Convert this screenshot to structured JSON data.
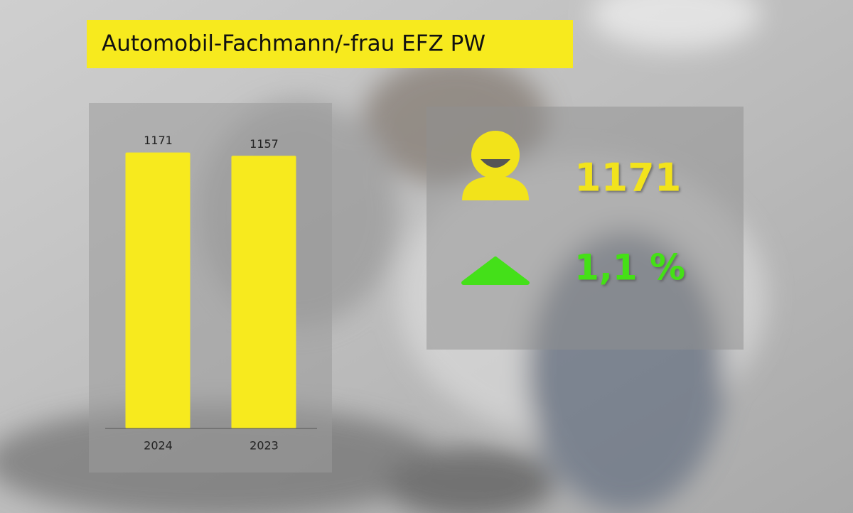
{
  "chart_data": {
    "type": "bar",
    "title": "Automobil-Fachmann/-frau EFZ PW",
    "categories": [
      "2024",
      "2023"
    ],
    "values": [
      1171,
      1157
    ],
    "color": "#f7ea1e",
    "ylim": [
      0,
      1200
    ]
  },
  "kpi": {
    "count": 1171,
    "change": "1,1 %"
  }
}
